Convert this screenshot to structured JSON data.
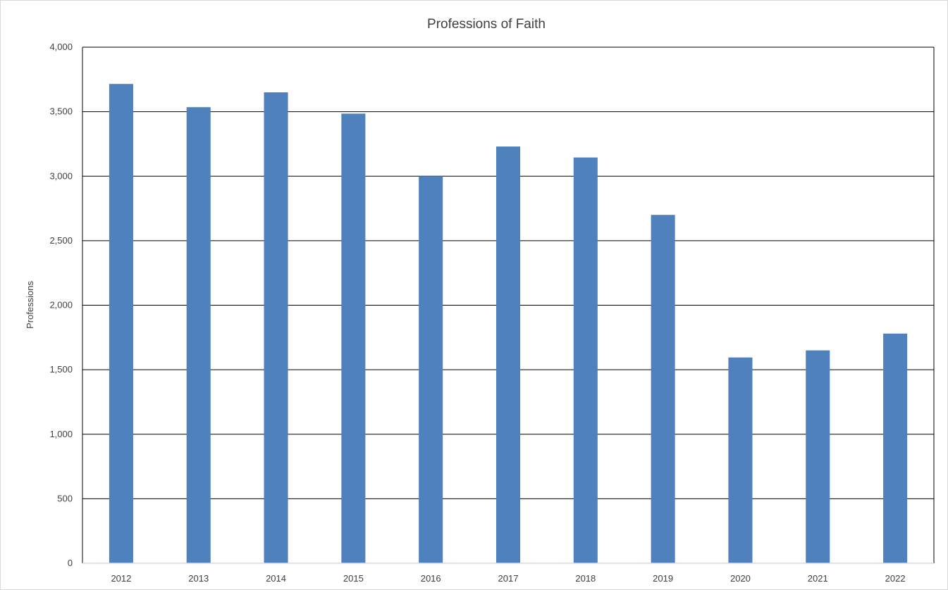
{
  "chart_data": {
    "type": "bar",
    "title": "Professions of Faith",
    "xlabel": "",
    "ylabel": "Professions",
    "categories": [
      "2012",
      "2013",
      "2014",
      "2015",
      "2016",
      "2017",
      "2018",
      "2019",
      "2020",
      "2021",
      "2022"
    ],
    "values": [
      3715,
      3535,
      3650,
      3485,
      3000,
      3230,
      3145,
      2700,
      1595,
      1650,
      1780
    ],
    "ylim": [
      0,
      4000
    ],
    "yticks": [
      0,
      500,
      1000,
      1500,
      2000,
      2500,
      3000,
      3500,
      4000
    ],
    "ytick_labels": [
      "0",
      "500",
      "1,000",
      "1,500",
      "2,000",
      "2,500",
      "3,000",
      "3,500",
      "4,000"
    ],
    "grid": true,
    "legend": "none",
    "bar_color": "#4f81bd"
  }
}
